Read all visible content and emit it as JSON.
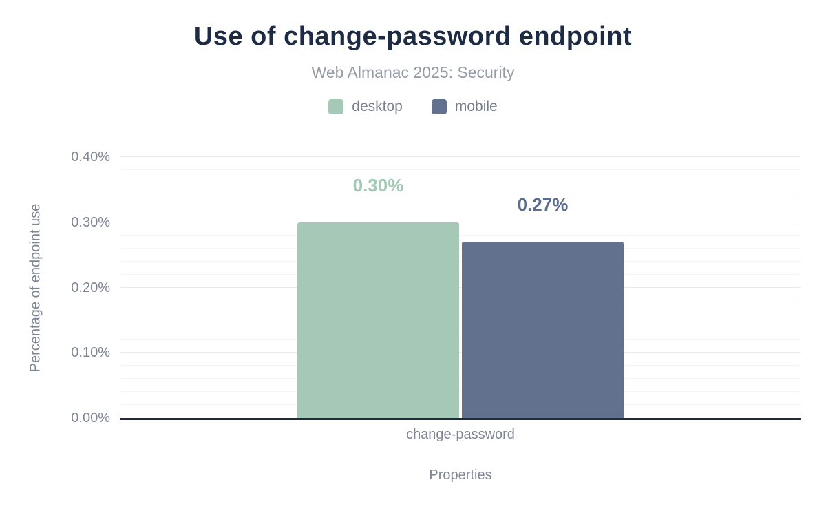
{
  "chart_data": {
    "type": "bar",
    "title": "Use of change-password endpoint",
    "subtitle": "Web Almanac 2025: Security",
    "xlabel": "Properties",
    "ylabel": "Percentage of endpoint use",
    "categories": [
      "change-password"
    ],
    "series": [
      {
        "name": "desktop",
        "values": [
          0.3
        ],
        "data_labels": [
          "0.30%"
        ],
        "color": "#a6c9b7",
        "label_color": "#a3c8b5"
      },
      {
        "name": "mobile",
        "values": [
          0.27
        ],
        "data_labels": [
          "0.27%"
        ],
        "color": "#62718e",
        "label_color": "#5c6c8c"
      }
    ],
    "ylim": [
      0,
      0.4
    ],
    "y_major_step": 0.1,
    "y_minor_step": 0.02,
    "y_tick_labels": [
      "0.00%",
      "0.10%",
      "0.20%",
      "0.30%",
      "0.40%"
    ],
    "legend_position": "top",
    "grid": "horizontal",
    "colors": {
      "title": "#1e2b45",
      "subtitle": "#959ba6",
      "axis_text": "#7e8594",
      "axis_line": "#1f2a44",
      "gridline_minor": "#f5f5f7",
      "gridline_major": "#e9eaec",
      "background": "#ffffff"
    }
  }
}
